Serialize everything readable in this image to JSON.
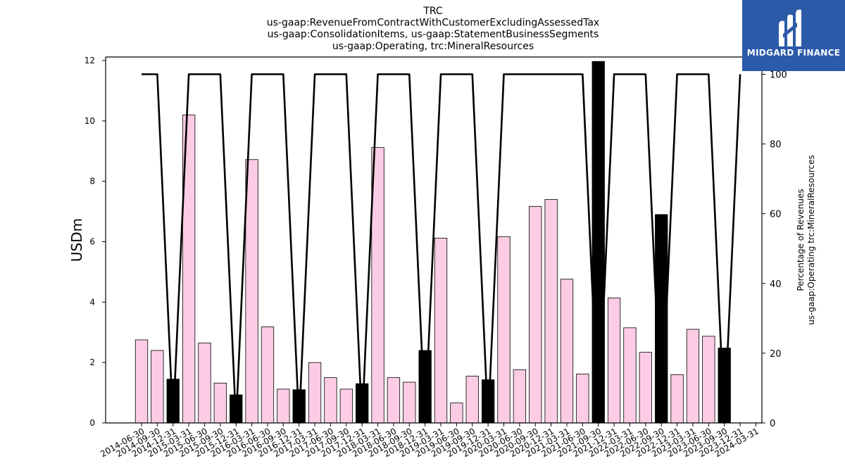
{
  "chart_data": {
    "type": "bar+line",
    "title_lines": [
      "TRC",
      "us-gaap:RevenueFromContractWithCustomerExcludingAssessedTax",
      "us-gaap:ConsolidationItems, us-gaap:StatementBusinessSegments",
      "us-gaap:Operating, trc:MineralResources"
    ],
    "ylabel_left": "USDm",
    "ylabel_right_lines": [
      "Percentage of Revenues",
      "us-gaap:Operating trc:MineralResources"
    ],
    "ylim_left": [
      0,
      12
    ],
    "yticks_left": [
      "0",
      "2",
      "4",
      "6",
      "8",
      "10",
      "12"
    ],
    "ylim_right": [
      0,
      100
    ],
    "yticks_right": [
      "0",
      "20",
      "40",
      "60",
      "80",
      "100"
    ],
    "categories": [
      "2014-06-30",
      "2014-09-30",
      "2014-12-31",
      "2015-03-31",
      "2015-06-30",
      "2015-09-30",
      "2015-12-31",
      "2016-03-31",
      "2016-06-30",
      "2016-09-30",
      "2016-12-31",
      "2017-03-31",
      "2017-06-30",
      "2017-09-30",
      "2017-12-31",
      "2018-03-31",
      "2018-06-30",
      "2018-09-30",
      "2018-12-31",
      "2019-03-31",
      "2019-06-30",
      "2019-09-30",
      "2019-12-31",
      "2020-03-31",
      "2020-06-30",
      "2020-09-30",
      "2020-12-31",
      "2021-03-31",
      "2021-06-30",
      "2021-09-30",
      "2021-12-31",
      "2022-03-31",
      "2022-06-30",
      "2022-09-30",
      "2022-12-31",
      "2023-03-31",
      "2023-06-30",
      "2023-09-30",
      "2023-12-31",
      "2024-03-31"
    ],
    "bar_values": [
      2.75,
      2.4,
      1.45,
      10.2,
      2.65,
      1.32,
      0.93,
      8.72,
      3.18,
      1.12,
      1.1,
      2.0,
      1.5,
      1.12,
      1.3,
      9.12,
      1.5,
      1.35,
      2.4,
      6.12,
      0.66,
      1.55,
      1.43,
      6.17,
      1.76,
      7.17,
      7.4,
      4.76,
      1.62,
      11.97,
      4.14,
      3.15,
      2.34,
      6.9,
      1.6,
      3.1,
      2.87,
      2.48
    ],
    "bar_x_positions": [
      0,
      1,
      2,
      3,
      4,
      5,
      6,
      7,
      8,
      9,
      10,
      11,
      12,
      13,
      14,
      15,
      16,
      17,
      18,
      19,
      20,
      21,
      22,
      23,
      24,
      25,
      26,
      27,
      28,
      29,
      30,
      31,
      32,
      33,
      34,
      35,
      36,
      37
    ],
    "bar_kind": [
      "q",
      "q",
      "y",
      "q",
      "q",
      "q",
      "y",
      "q",
      "q",
      "q",
      "y",
      "q",
      "q",
      "q",
      "y",
      "q",
      "q",
      "q",
      "y",
      "q",
      "q",
      "q",
      "y",
      "q",
      "q",
      "q",
      "q",
      "q",
      "q",
      "y",
      "q",
      "q",
      "q",
      "y",
      "q",
      "q",
      "q",
      "y"
    ],
    "bar_colors": {
      "q": "#fbcce4",
      "y": "#000000"
    },
    "line_values": [
      100,
      100,
      0,
      100,
      100,
      100,
      0,
      100,
      100,
      100,
      0,
      100,
      100,
      100,
      0,
      100,
      100,
      100,
      0,
      100,
      100,
      100,
      0,
      100,
      100,
      100,
      100,
      100,
      100,
      0,
      100,
      100,
      100,
      0,
      100,
      100,
      100,
      0,
      100
    ],
    "line_color": "#000000",
    "logo_text": "MIDGARD FINANCE",
    "logo_color": "#2b5aa8"
  }
}
